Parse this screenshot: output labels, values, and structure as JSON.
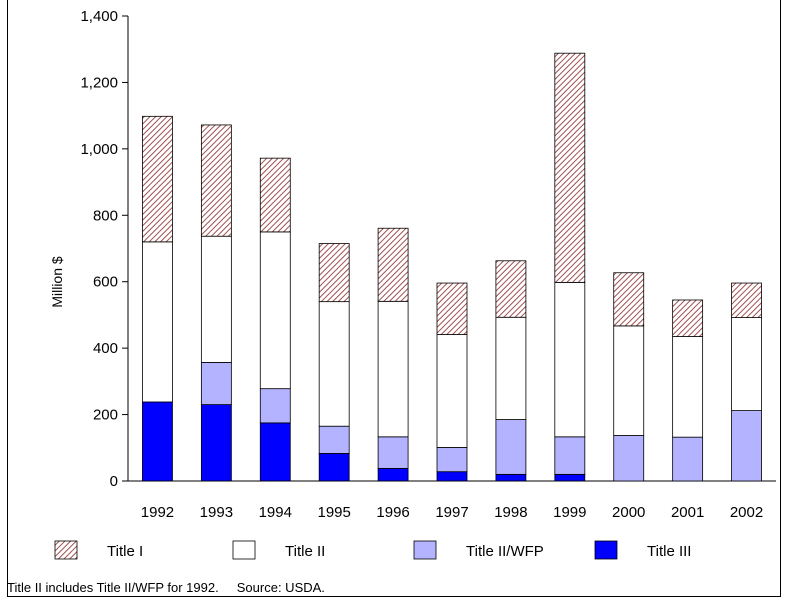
{
  "chart_data": {
    "type": "bar",
    "stacked": true,
    "title": "",
    "xlabel": "",
    "ylabel": "Million $",
    "ylim": [
      0,
      1400
    ],
    "yticks": [
      0,
      200,
      400,
      600,
      800,
      1000,
      1200,
      1400
    ],
    "ytick_labels": [
      "0",
      "200",
      "400",
      "600",
      "800",
      "1,000",
      "1,200",
      "1,400"
    ],
    "categories": [
      "1992",
      "1993",
      "1994",
      "1995",
      "1996",
      "1997",
      "1998",
      "1999",
      "2000",
      "2001",
      "2002"
    ],
    "series": [
      {
        "name": "Title III",
        "color": "#0000ff",
        "pattern": "solid",
        "values": [
          238,
          230,
          175,
          83,
          38,
          28,
          20,
          20,
          0,
          0,
          0
        ]
      },
      {
        "name": "Title II/WFP",
        "color": "#b3b3ff",
        "pattern": "solid",
        "values": [
          0,
          127,
          103,
          82,
          95,
          73,
          165,
          113,
          137,
          132,
          212
        ]
      },
      {
        "name": "Title II",
        "color": "#ffffff",
        "pattern": "solid",
        "values": [
          482,
          380,
          472,
          375,
          408,
          340,
          308,
          465,
          330,
          303,
          280
        ]
      },
      {
        "name": "Title I",
        "color": "#a05050",
        "pattern": "hatch",
        "values": [
          378,
          335,
          222,
          175,
          220,
          155,
          170,
          690,
          160,
          110,
          104
        ]
      }
    ],
    "legend": {
      "placement": "bottom",
      "order": [
        "Title I",
        "Title II",
        "Title II/WFP",
        "Title III"
      ]
    },
    "grid": false
  },
  "footnote": {
    "note": "Title II includes Title II/WFP for 1992.",
    "source": "Source: USDA."
  }
}
